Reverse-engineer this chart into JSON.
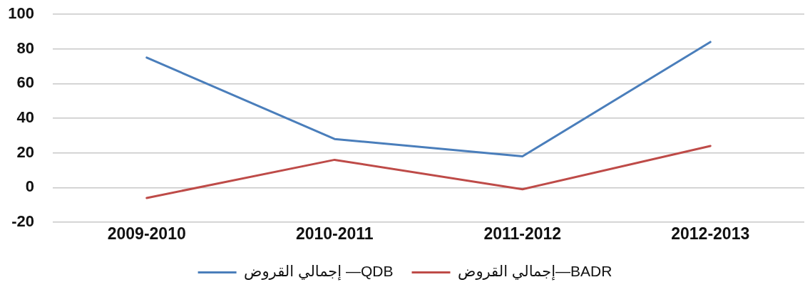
{
  "chart_data": {
    "type": "line",
    "categories": [
      "2009-2010",
      "2010-2011",
      "2011-2012",
      "2012-2013"
    ],
    "series": [
      {
        "name": "إجمالي القروض —QDB",
        "color": "#4a7ebb",
        "values": [
          75,
          28,
          18,
          84
        ]
      },
      {
        "name": "إجمالي القروض—BADR",
        "color": "#be4b48",
        "values": [
          -6,
          16,
          -1,
          24
        ]
      }
    ],
    "ylim": [
      -20,
      100
    ],
    "yticks": [
      -20,
      0,
      20,
      40,
      60,
      80,
      100
    ],
    "grid": "y",
    "legend": "bottom",
    "marker": "none",
    "line_style": "solid"
  }
}
